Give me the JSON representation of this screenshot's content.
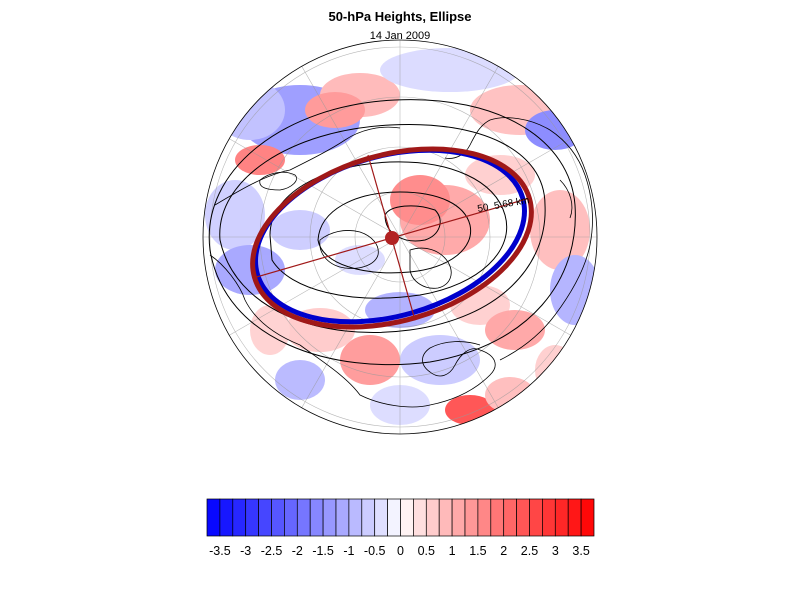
{
  "title": "50-hPa Heights, Ellipse",
  "subtitle": "14 Jan 2009",
  "contour_label": "5.68 km",
  "contour_label_prefix": "50",
  "colorbar": {
    "tick_labels": [
      "-3.5",
      "-3",
      "-2.5",
      "-2",
      "-1.5",
      "-1",
      "-0.5",
      "0",
      "0.5",
      "1",
      "1.5",
      "2",
      "2.5",
      "3",
      "3.5"
    ],
    "range": [
      -3.75,
      3.75
    ],
    "step": 0.25,
    "negative_color": "#0000ff",
    "neutral_color": "#ffffff",
    "positive_color": "#ff0000"
  },
  "colors": {
    "ellipse_fitted": "#a01818",
    "ellipse_reference": "#0000cc",
    "center_marker": "#b22222",
    "contour": "#000000",
    "coastline": "#000000",
    "grid": "#999999"
  },
  "projection": "polar-stereographic",
  "grid": true
}
